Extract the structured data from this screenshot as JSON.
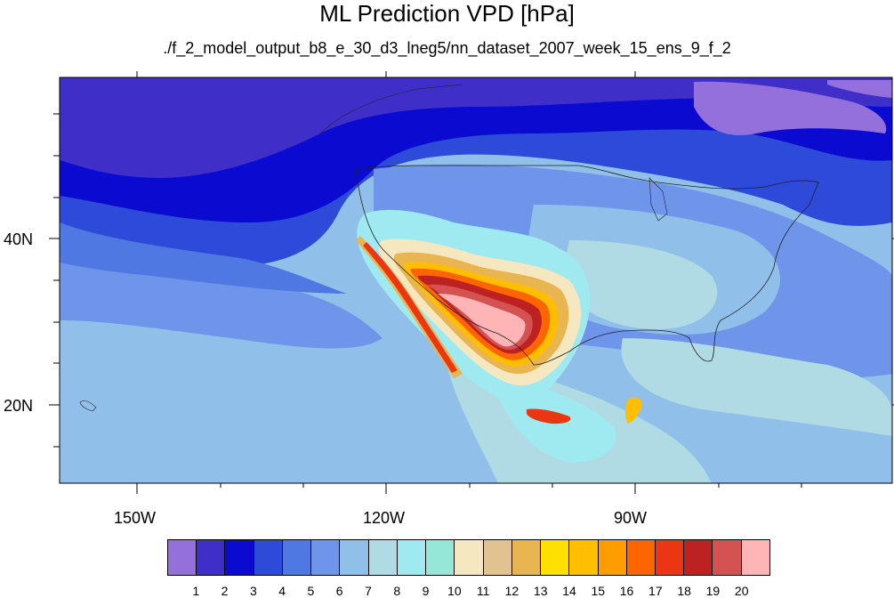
{
  "title": "ML Prediction VPD [hPa]",
  "subtitle": "./f_2_model_output_b8_e_30_d3_lneg5/nn_dataset_2007_week_15_ens_9_f_2",
  "axes": {
    "lon_labels": [
      "150W",
      "120W",
      "90W"
    ],
    "lat_labels": [
      "40N",
      "20N"
    ],
    "lon_range": [
      -160,
      -58
    ],
    "lat_range": [
      11,
      60
    ]
  },
  "colorbar": {
    "colors": [
      "#9370db",
      "#3f2fc8",
      "#0a0ad0",
      "#2e4ad8",
      "#4f78e2",
      "#6f95ea",
      "#90c0ea",
      "#b0dbe5",
      "#9feaf0",
      "#95e8d8",
      "#f5e8c0",
      "#e3c292",
      "#e9b551",
      "#ffe000",
      "#ffbf00",
      "#ff9d00",
      "#fd6500",
      "#ea3613",
      "#bd2121",
      "#d45252",
      "#ffb5b5"
    ],
    "labels": [
      "1",
      "2",
      "3",
      "4",
      "5",
      "6",
      "7",
      "8",
      "9",
      "10",
      "11",
      "12",
      "13",
      "14",
      "15",
      "16",
      "17",
      "18",
      "19",
      "20"
    ]
  }
}
